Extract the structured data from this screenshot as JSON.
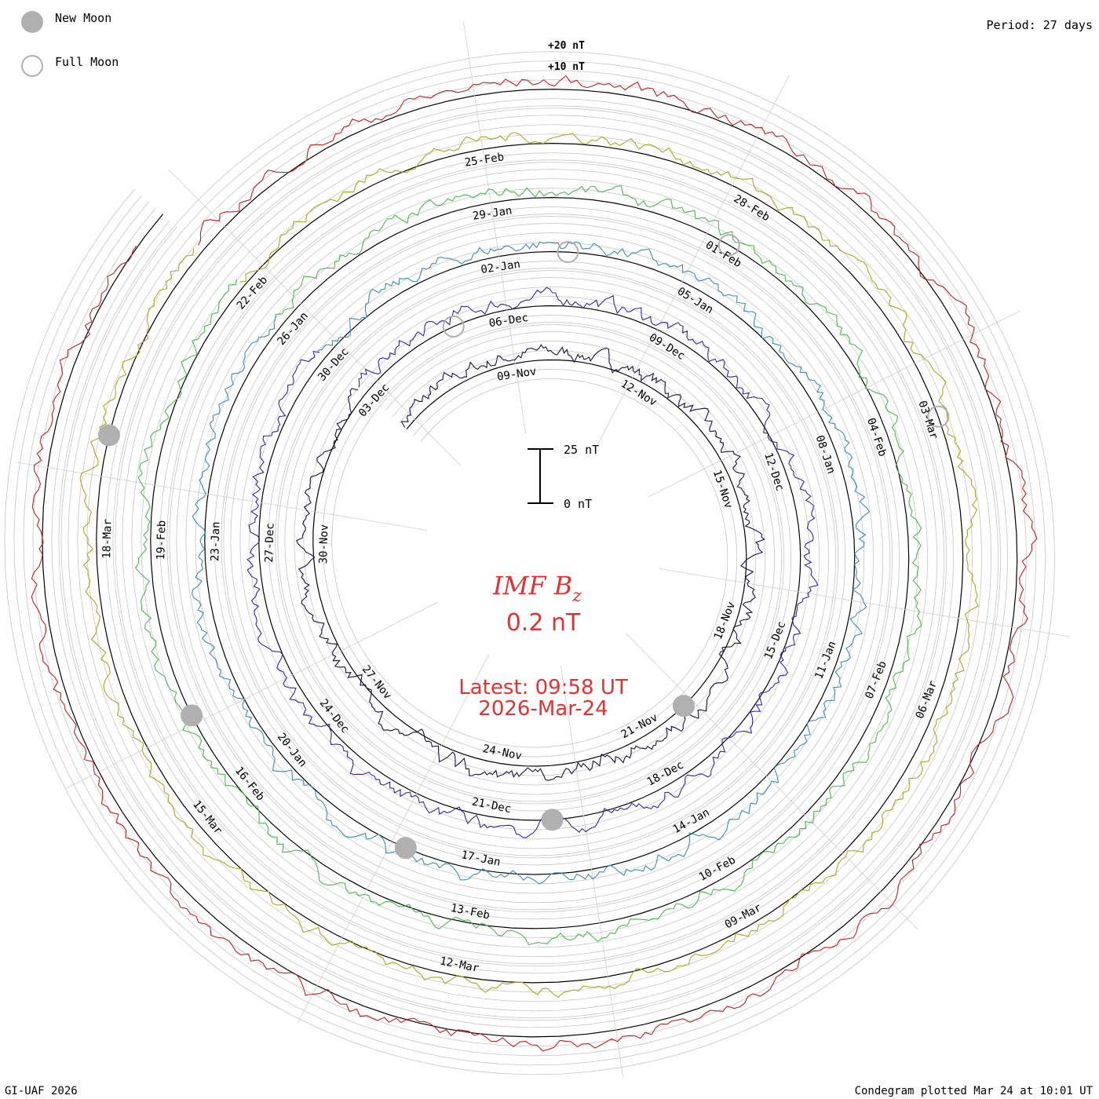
{
  "legend": {
    "new_moon": "New Moon",
    "full_moon": "Full Moon",
    "new_moon_color": "#b0b0b0"
  },
  "period_label": "Period: 27 days",
  "footer_left": "GI-UAF 2026",
  "footer_right": "Condegram plotted Mar 24 at 10:01 UT",
  "scale": {
    "top_label": "+20 nT",
    "mid_label": "+10 nT",
    "bar_top": "25 nT",
    "bar_bottom": "0 nT"
  },
  "center": {
    "parameter": "IMF B",
    "subscript": "z",
    "current_value": "0.2 nT",
    "latest_time": "Latest: 09:58 UT",
    "latest_date": "2026-Mar-24"
  },
  "chart_data": {
    "type": "line",
    "plot_style": "condegram spiral (polar)",
    "parameter": "IMF Bz",
    "units": "nT",
    "period_days": 27,
    "series": [
      {
        "start": "06-Nov",
        "color": "#1a1040"
      },
      {
        "start": "03-Dec",
        "color": "#3424a0"
      },
      {
        "start": "30-Dec",
        "color": "#3a8cb8"
      },
      {
        "start": "26-Jan",
        "color": "#4cb84c"
      },
      {
        "start": "22-Feb",
        "color": "#a8a820"
      },
      {
        "start": "21-Mar",
        "color": "#c02020"
      }
    ],
    "date_labels": [
      "09-Nov",
      "12-Nov",
      "15-Nov",
      "18-Nov",
      "21-Nov",
      "24-Nov",
      "27-Nov",
      "30-Nov",
      "03-Dec",
      "06-Dec",
      "09-Dec",
      "12-Dec",
      "15-Dec",
      "18-Dec",
      "21-Dec",
      "24-Dec",
      "27-Dec",
      "30-Dec",
      "02-Jan",
      "05-Jan",
      "08-Jan",
      "11-Jan",
      "14-Jan",
      "17-Jan",
      "20-Jan",
      "23-Jan",
      "26-Jan",
      "29-Jan",
      "01-Feb",
      "04-Feb",
      "07-Feb",
      "10-Feb",
      "13-Feb",
      "16-Feb",
      "19-Feb",
      "22-Feb",
      "25-Feb",
      "28-Feb",
      "03-Mar",
      "06-Mar",
      "09-Mar",
      "12-Mar",
      "15-Mar",
      "18-Mar"
    ],
    "new_moon_dates": [
      "20-Nov",
      "20-Dec",
      "18-Jan",
      "17-Feb",
      "19-Mar"
    ],
    "full_moon_dates": [
      "05-Dec",
      "03-Jan",
      "01-Feb",
      "03-Mar"
    ],
    "latest_value_nT": 0.2
  }
}
